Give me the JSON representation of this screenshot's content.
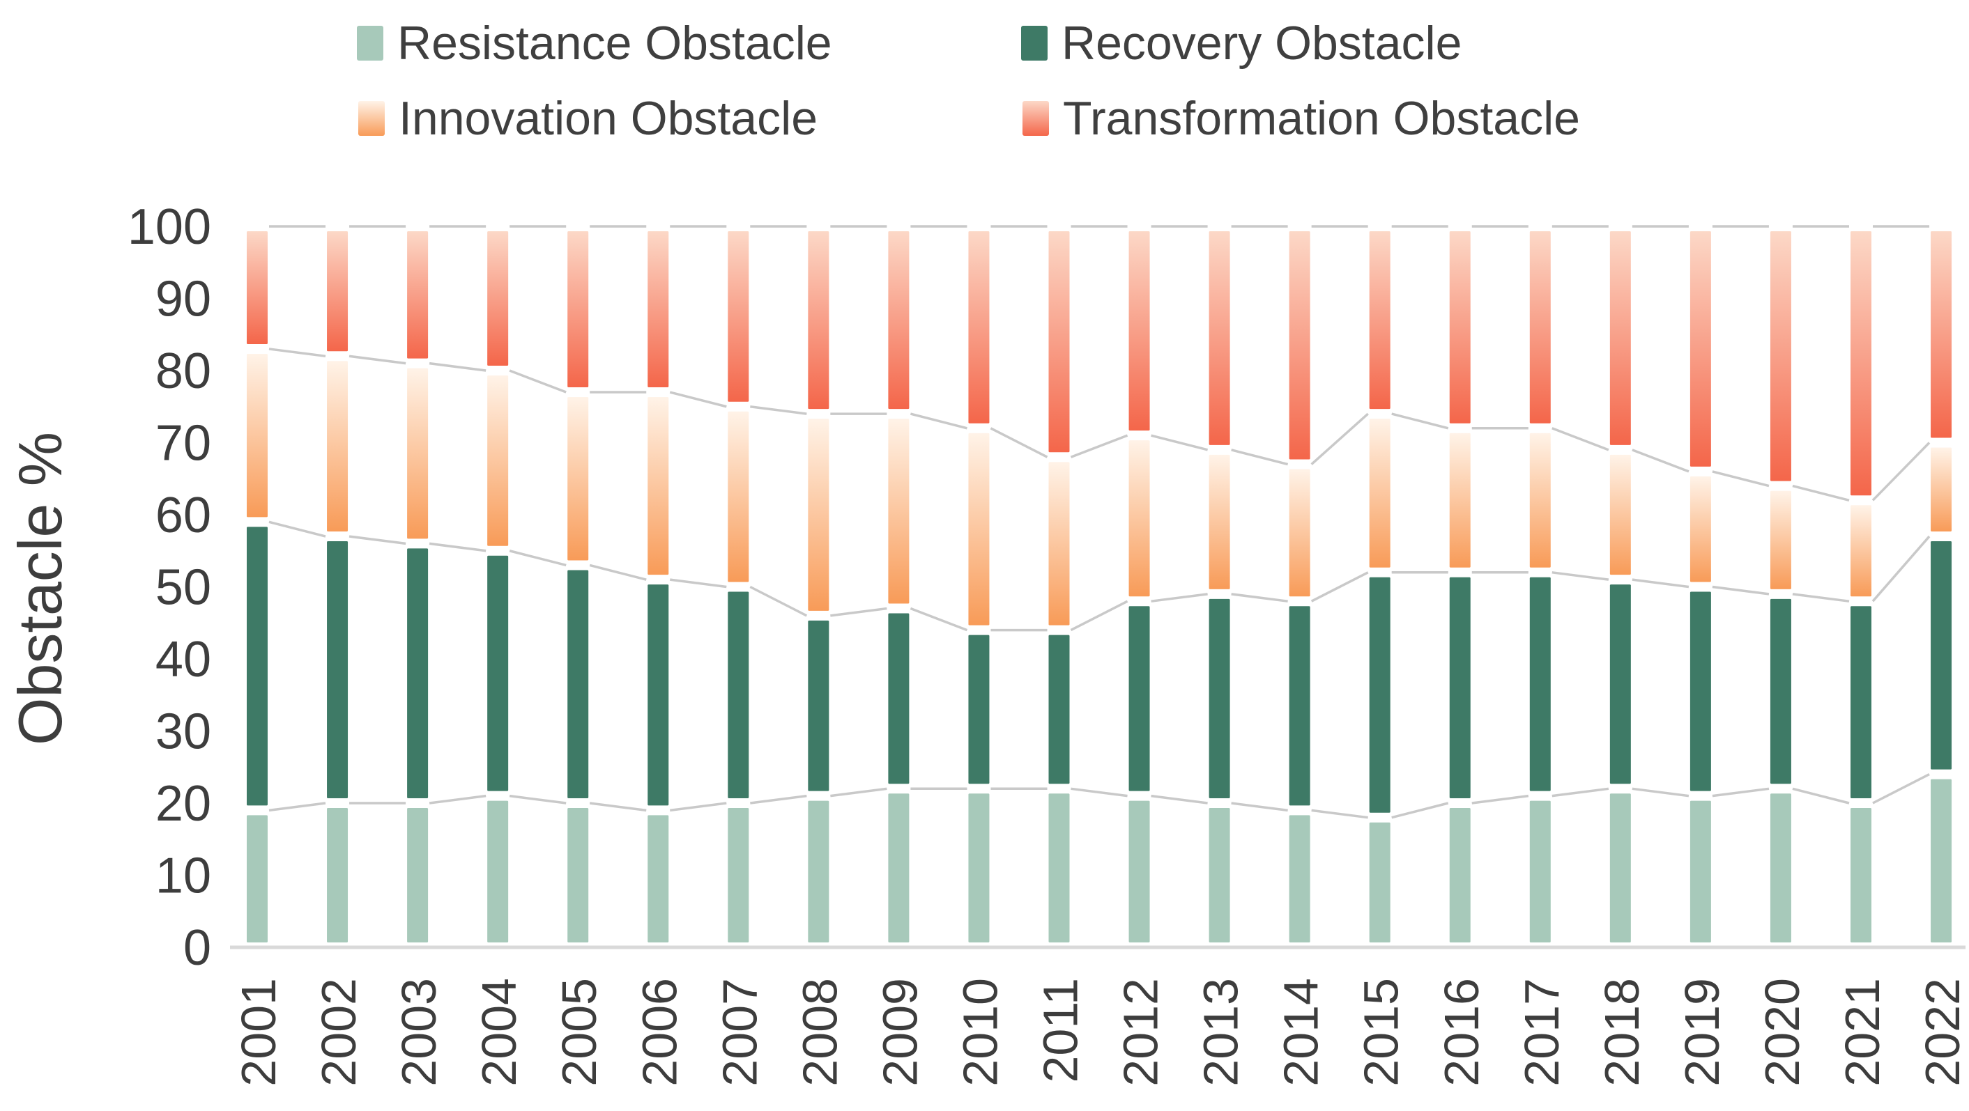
{
  "chart_data": {
    "type": "bar",
    "stacked": true,
    "percent_stacked": true,
    "title": "",
    "xlabel": "",
    "ylabel": "Obstacle %",
    "ylim": [
      0,
      100
    ],
    "yticks": [
      0,
      10,
      20,
      30,
      40,
      50,
      60,
      70,
      80,
      90,
      100
    ],
    "grid": false,
    "legend_position": "top",
    "connector_lines": true,
    "colors": {
      "connector_line": "#c9c9c9",
      "axis_line": "#d9d9d9",
      "text": "#3d3d3d"
    },
    "categories": [
      "2001",
      "2002",
      "2003",
      "2004",
      "2005",
      "2006",
      "2007",
      "2008",
      "2009",
      "2010",
      "2011",
      "2012",
      "2013",
      "2014",
      "2015",
      "2016",
      "2017",
      "2018",
      "2019",
      "2020",
      "2021",
      "2022"
    ],
    "series": [
      {
        "name": "Resistance Obstacle",
        "color": "#a7c9ba",
        "gradient": [
          "#a7c9ba",
          "#a7c9ba"
        ],
        "values": [
          19,
          20,
          20,
          21,
          20,
          19,
          20,
          21,
          22,
          22,
          22,
          21,
          20,
          19,
          18,
          20,
          21,
          22,
          21,
          22,
          20,
          24
        ]
      },
      {
        "name": "Recovery Obstacle",
        "color": "#3e7a66",
        "gradient": [
          "#3e7a66",
          "#3e7a66"
        ],
        "values": [
          40,
          37,
          36,
          34,
          33,
          32,
          30,
          25,
          25,
          22,
          22,
          27,
          29,
          29,
          34,
          32,
          31,
          29,
          29,
          27,
          28,
          33
        ]
      },
      {
        "name": "Innovation Obstacle",
        "color": "#f89b58",
        "gradient": [
          "#fff3e8",
          "#f89b58"
        ],
        "values": [
          24,
          25,
          25,
          25,
          24,
          26,
          25,
          28,
          27,
          28,
          24,
          23,
          20,
          19,
          22,
          20,
          20,
          18,
          16,
          15,
          14,
          13
        ]
      },
      {
        "name": "Transformation Obstacle",
        "color": "#f4664a",
        "gradient": [
          "#fcd8c7",
          "#f4664a"
        ],
        "values": [
          17,
          18,
          19,
          20,
          23,
          23,
          25,
          26,
          26,
          28,
          32,
          29,
          31,
          33,
          26,
          28,
          28,
          31,
          34,
          36,
          38,
          30
        ]
      }
    ]
  }
}
